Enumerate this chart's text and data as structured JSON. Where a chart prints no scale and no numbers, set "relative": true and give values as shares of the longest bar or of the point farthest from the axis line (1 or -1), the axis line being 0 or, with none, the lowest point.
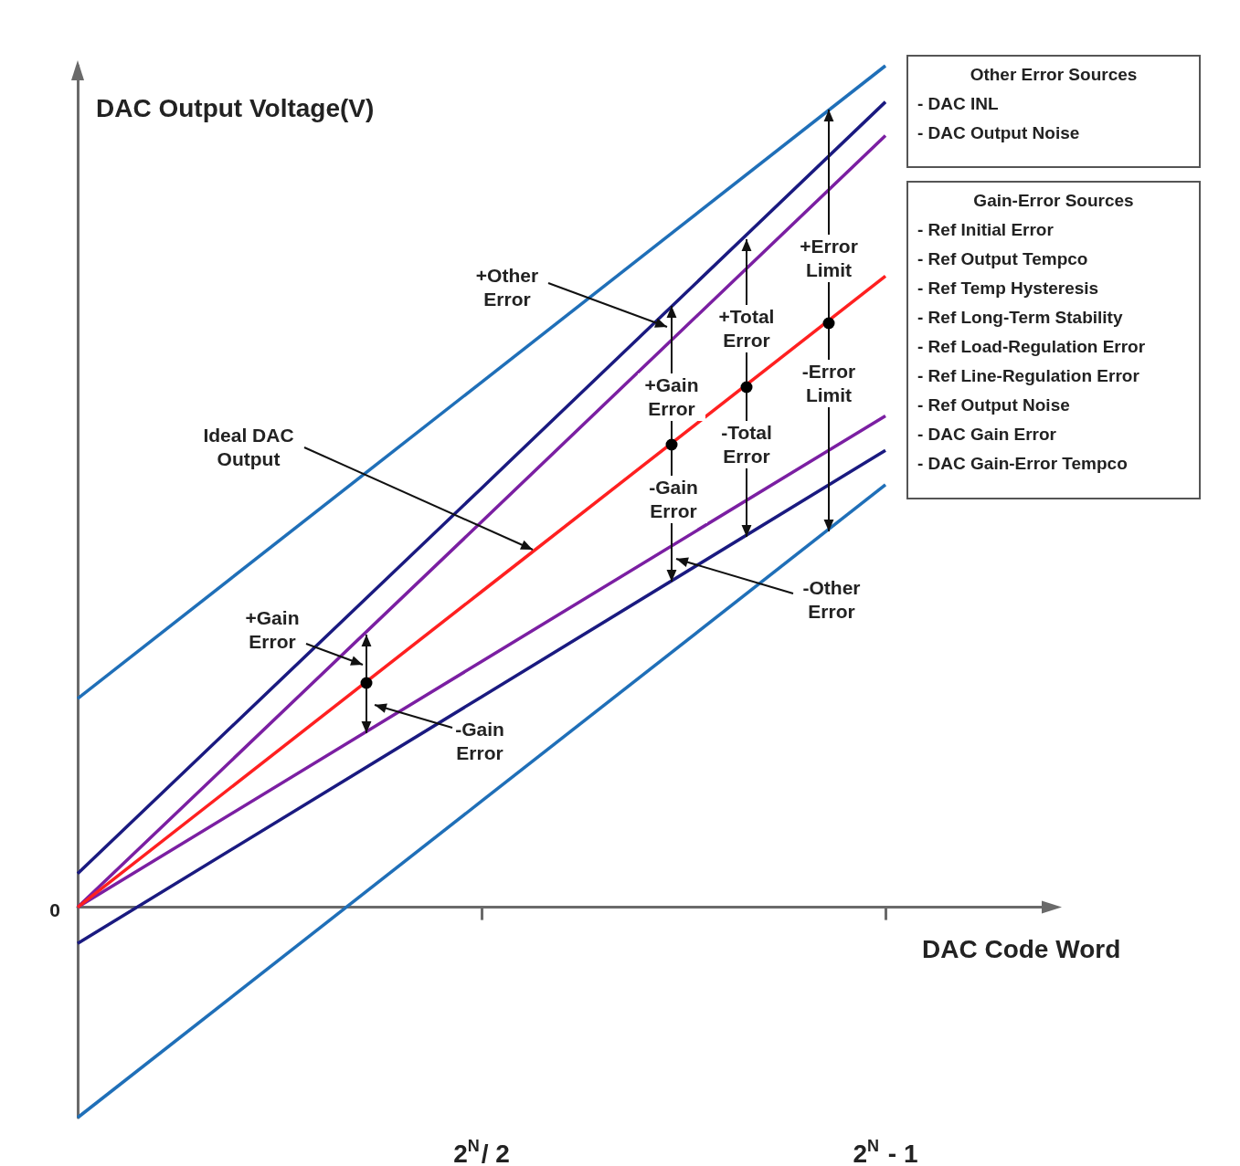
{
  "chart_data": {
    "type": "line",
    "relative": true,
    "xlabel": "DAC Code Word",
    "ylabel": "DAC Output Voltage(V)",
    "categories": [
      null,
      "2$^{N}$/ 2",
      "2$^{N}$ - 1"
    ],
    "marker": "none",
    "line_style": "solid",
    "grid": false,
    "series": [
      {
        "color": "#1f6fb8",
        "values": [
          0.248,
          0.624,
          1.0
        ]
      },
      {
        "color": "#1f6fb8",
        "values": [
          -0.25,
          0.126,
          0.502
        ]
      },
      {
        "color": "#1a1a80",
        "values": [
          0.04,
          0.498,
          0.957
        ]
      },
      {
        "color": "#1a1a80",
        "values": [
          -0.043,
          0.25,
          0.543
        ]
      },
      {
        "color": "#7b1fa2",
        "values": [
          0,
          0.458,
          0.917
        ]
      },
      {
        "color": "#7b1fa2",
        "values": [
          0,
          0.292,
          0.584
        ]
      },
      {
        "color": "#ff2020",
        "values": [
          0,
          0.375,
          0.75
        ]
      }
    ],
    "annotations": [
      "+Other Error",
      "Ideal DAC Output",
      "+Gain Error",
      "-Gain Error",
      "-Other Error",
      "+Gain Error",
      "-Gain Error",
      "+Total Error",
      "-Total Error",
      "+Error Limit",
      "-Error Limit",
      "Other Error Sources\n- DAC INL\n- DAC Output Noise",
      "Gain-Error Sources\n- Ref Initial Error\n- Ref Output Tempco\n- Ref Temp Hysteresis\n- Ref Long-Term Stability\n- Ref Load-Regulation Error\n- Ref Line-Regulation Error\n- Ref Output Noise\n- DAC Gain Error\n- DAC Gain-Error Tempco",
      "0"
    ]
  }
}
